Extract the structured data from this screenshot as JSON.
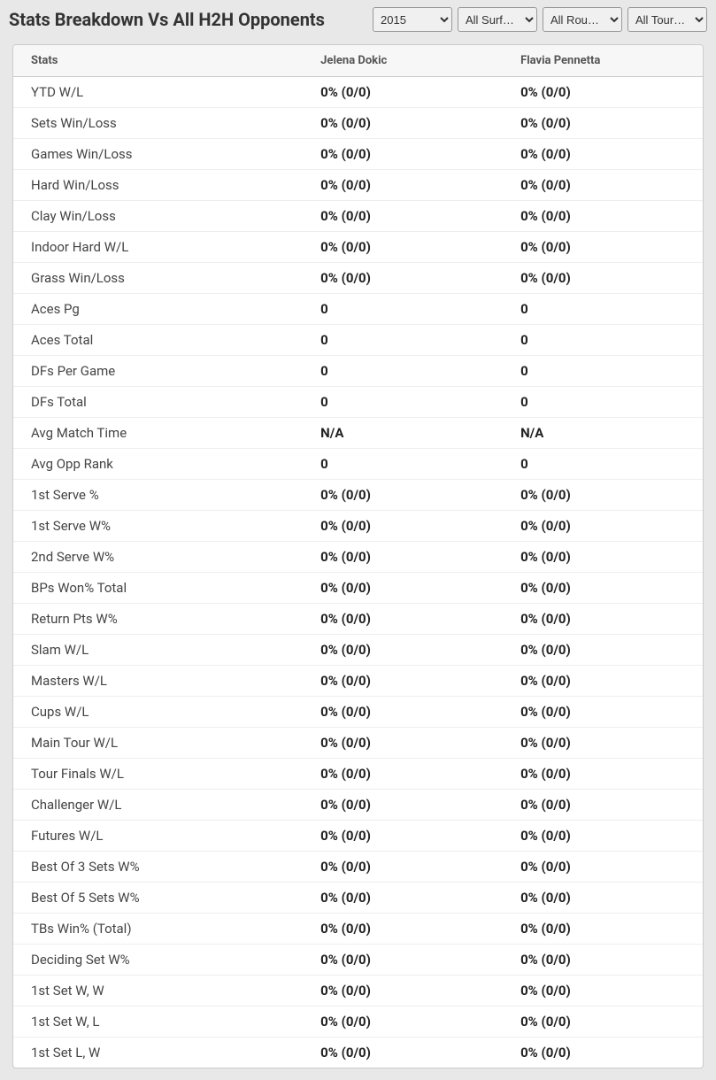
{
  "header": {
    "title": "Stats Breakdown Vs All H2H Opponents"
  },
  "filters": {
    "year": {
      "selected": "2015",
      "options": [
        "2015"
      ]
    },
    "surface": {
      "selected": "All Surf…",
      "options": [
        "All Surf…"
      ]
    },
    "round": {
      "selected": "All Rou…",
      "options": [
        "All Rou…"
      ]
    },
    "tour": {
      "selected": "All Tour…",
      "options": [
        "All Tour…"
      ]
    }
  },
  "table": {
    "columns": {
      "stats": "Stats",
      "player1": "Jelena Dokic",
      "player2": "Flavia Pennetta"
    },
    "rows": [
      {
        "label": "YTD W/L",
        "p1": "0% (0/0)",
        "p2": "0% (0/0)"
      },
      {
        "label": "Sets Win/Loss",
        "p1": "0% (0/0)",
        "p2": "0% (0/0)"
      },
      {
        "label": "Games Win/Loss",
        "p1": "0% (0/0)",
        "p2": "0% (0/0)"
      },
      {
        "label": "Hard Win/Loss",
        "p1": "0% (0/0)",
        "p2": "0% (0/0)"
      },
      {
        "label": "Clay Win/Loss",
        "p1": "0% (0/0)",
        "p2": "0% (0/0)"
      },
      {
        "label": "Indoor Hard W/L",
        "p1": "0% (0/0)",
        "p2": "0% (0/0)"
      },
      {
        "label": "Grass Win/Loss",
        "p1": "0% (0/0)",
        "p2": "0% (0/0)"
      },
      {
        "label": "Aces Pg",
        "p1": "0",
        "p2": "0"
      },
      {
        "label": "Aces Total",
        "p1": "0",
        "p2": "0"
      },
      {
        "label": "DFs Per Game",
        "p1": "0",
        "p2": "0"
      },
      {
        "label": "DFs Total",
        "p1": "0",
        "p2": "0"
      },
      {
        "label": "Avg Match Time",
        "p1": "N/A",
        "p2": "N/A"
      },
      {
        "label": "Avg Opp Rank",
        "p1": "0",
        "p2": "0"
      },
      {
        "label": "1st Serve %",
        "p1": "0% (0/0)",
        "p2": "0% (0/0)"
      },
      {
        "label": "1st Serve W%",
        "p1": "0% (0/0)",
        "p2": "0% (0/0)"
      },
      {
        "label": "2nd Serve W%",
        "p1": "0% (0/0)",
        "p2": "0% (0/0)"
      },
      {
        "label": "BPs Won% Total",
        "p1": "0% (0/0)",
        "p2": "0% (0/0)"
      },
      {
        "label": "Return Pts W%",
        "p1": "0% (0/0)",
        "p2": "0% (0/0)"
      },
      {
        "label": "Slam W/L",
        "p1": "0% (0/0)",
        "p2": "0% (0/0)"
      },
      {
        "label": "Masters W/L",
        "p1": "0% (0/0)",
        "p2": "0% (0/0)"
      },
      {
        "label": "Cups W/L",
        "p1": "0% (0/0)",
        "p2": "0% (0/0)"
      },
      {
        "label": "Main Tour W/L",
        "p1": "0% (0/0)",
        "p2": "0% (0/0)"
      },
      {
        "label": "Tour Finals W/L",
        "p1": "0% (0/0)",
        "p2": "0% (0/0)"
      },
      {
        "label": "Challenger W/L",
        "p1": "0% (0/0)",
        "p2": "0% (0/0)"
      },
      {
        "label": "Futures W/L",
        "p1": "0% (0/0)",
        "p2": "0% (0/0)"
      },
      {
        "label": "Best Of 3 Sets W%",
        "p1": "0% (0/0)",
        "p2": "0% (0/0)"
      },
      {
        "label": "Best Of 5 Sets W%",
        "p1": "0% (0/0)",
        "p2": "0% (0/0)"
      },
      {
        "label": "TBs Win% (Total)",
        "p1": "0% (0/0)",
        "p2": "0% (0/0)"
      },
      {
        "label": "Deciding Set W%",
        "p1": "0% (0/0)",
        "p2": "0% (0/0)"
      },
      {
        "label": "1st Set W, W",
        "p1": "0% (0/0)",
        "p2": "0% (0/0)"
      },
      {
        "label": "1st Set W, L",
        "p1": "0% (0/0)",
        "p2": "0% (0/0)"
      },
      {
        "label": "1st Set L, W",
        "p1": "0% (0/0)",
        "p2": "0% (0/0)"
      }
    ]
  }
}
